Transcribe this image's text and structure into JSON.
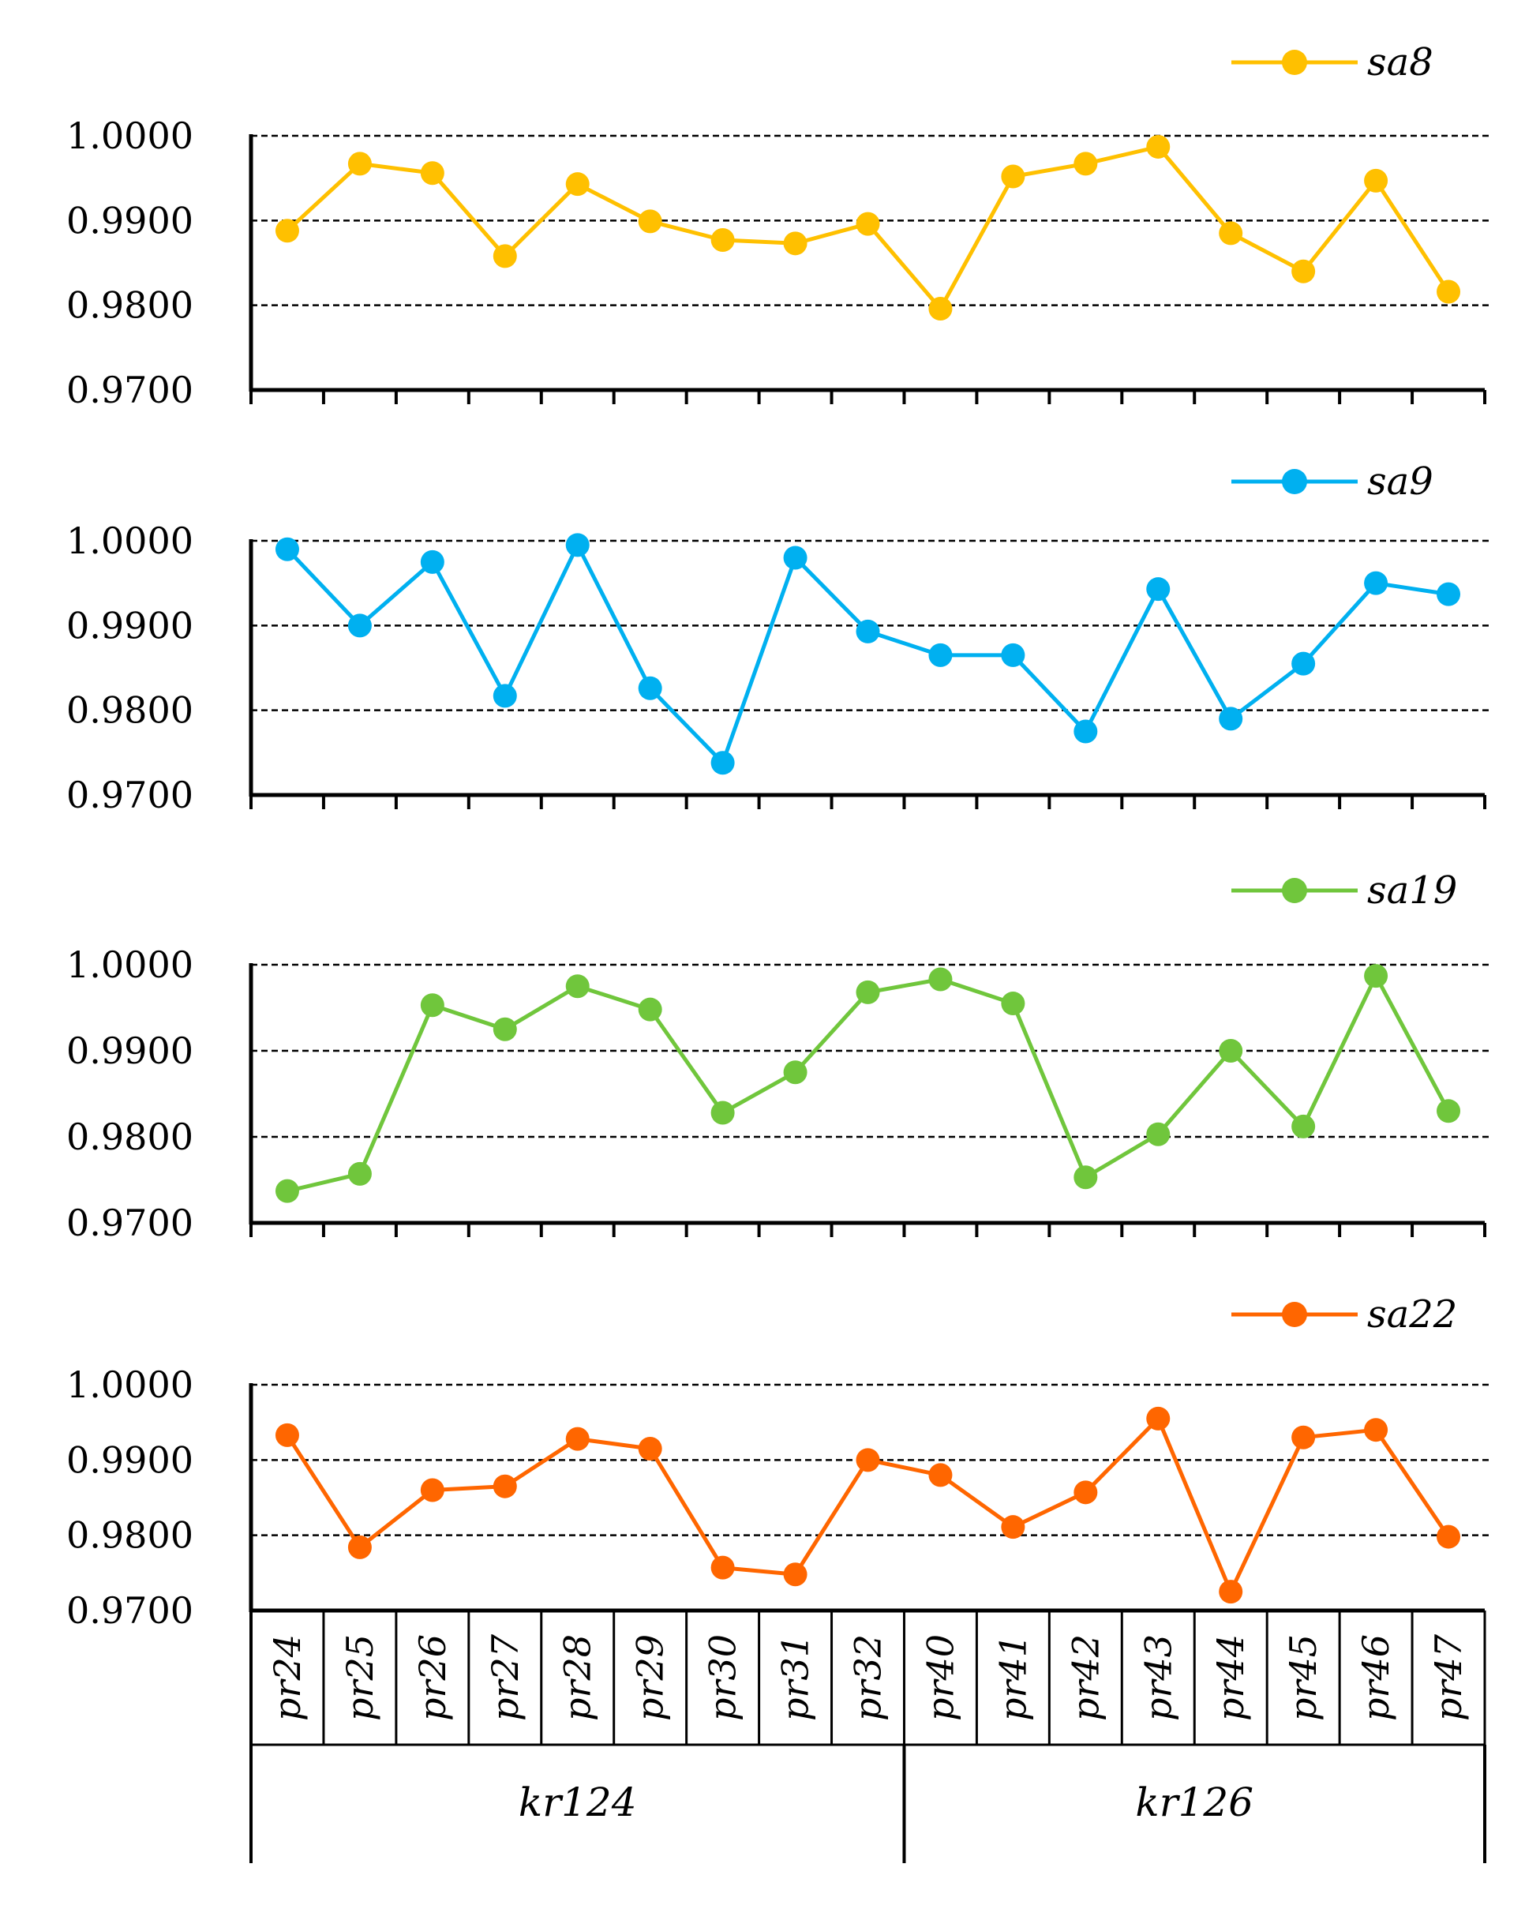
{
  "chart_data": [
    {
      "type": "line",
      "series_name": "sa8",
      "color": "#FFC000",
      "ylim": [
        0.97,
        1.0
      ],
      "yticks": [
        "1.0000",
        "0.9900",
        "0.9800",
        "0.9700"
      ],
      "values": [
        0.9888,
        0.9967,
        0.9956,
        0.9858,
        0.9943,
        0.9899,
        0.9877,
        0.9873,
        0.9896,
        0.9796,
        0.9952,
        0.9967,
        0.9987,
        0.9885,
        0.984,
        0.9947,
        0.9816
      ]
    },
    {
      "type": "line",
      "series_name": "sa9",
      "color": "#00B0F0",
      "ylim": [
        0.97,
        1.0
      ],
      "yticks": [
        "1.0000",
        "0.9900",
        "0.9800",
        "0.9700"
      ],
      "values": [
        0.999,
        0.99,
        0.9975,
        0.9817,
        0.9995,
        0.9826,
        0.9738,
        0.998,
        0.9893,
        0.9865,
        0.9865,
        0.9775,
        0.9943,
        0.979,
        0.9855,
        0.995,
        0.9937
      ]
    },
    {
      "type": "line",
      "series_name": "sa19",
      "color": "#70C63C",
      "ylim": [
        0.97,
        1.0
      ],
      "yticks": [
        "1.0000",
        "0.9900",
        "0.9800",
        "0.9700"
      ],
      "values": [
        0.9737,
        0.9757,
        0.9953,
        0.9925,
        0.9975,
        0.9948,
        0.9828,
        0.9875,
        0.9968,
        0.9983,
        0.9955,
        0.9753,
        0.9803,
        0.99,
        0.9812,
        0.9987,
        0.983
      ]
    },
    {
      "type": "line",
      "series_name": "sa22",
      "color": "#FF6600",
      "ylim": [
        0.97,
        1.0
      ],
      "yticks": [
        "1.0000",
        "0.9900",
        "0.9800",
        "0.9700"
      ],
      "values": [
        0.9933,
        0.9784,
        0.986,
        0.9865,
        0.9928,
        0.9915,
        0.9757,
        0.9748,
        0.99,
        0.988,
        0.9811,
        0.9857,
        0.9955,
        0.9725,
        0.993,
        0.994,
        0.9798
      ]
    }
  ],
  "categories": [
    "pr24",
    "pr25",
    "pr26",
    "pr27",
    "pr28",
    "pr29",
    "pr30",
    "pr31",
    "pr32",
    "pr40",
    "pr41",
    "pr42",
    "pr43",
    "pr44",
    "pr45",
    "pr46",
    "pr47"
  ],
  "groups": [
    {
      "label": "kr124",
      "count": 9
    },
    {
      "label": "kr126",
      "count": 8
    }
  ]
}
